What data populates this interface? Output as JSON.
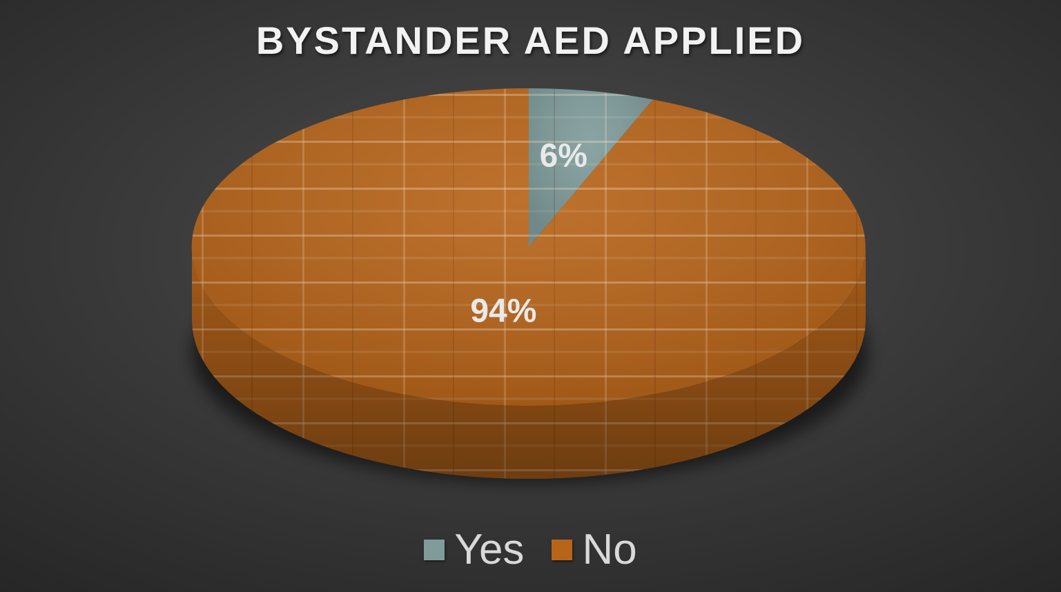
{
  "chart_data": {
    "type": "pie",
    "title": "BYSTANDER AED APPLIED",
    "categories": [
      "Yes",
      "No"
    ],
    "values": [
      6,
      94
    ],
    "data_labels": [
      "6%",
      "94%"
    ],
    "colors": [
      "#7f9c9b",
      "#b7651b"
    ],
    "legend_position": "bottom",
    "style": "3d"
  }
}
